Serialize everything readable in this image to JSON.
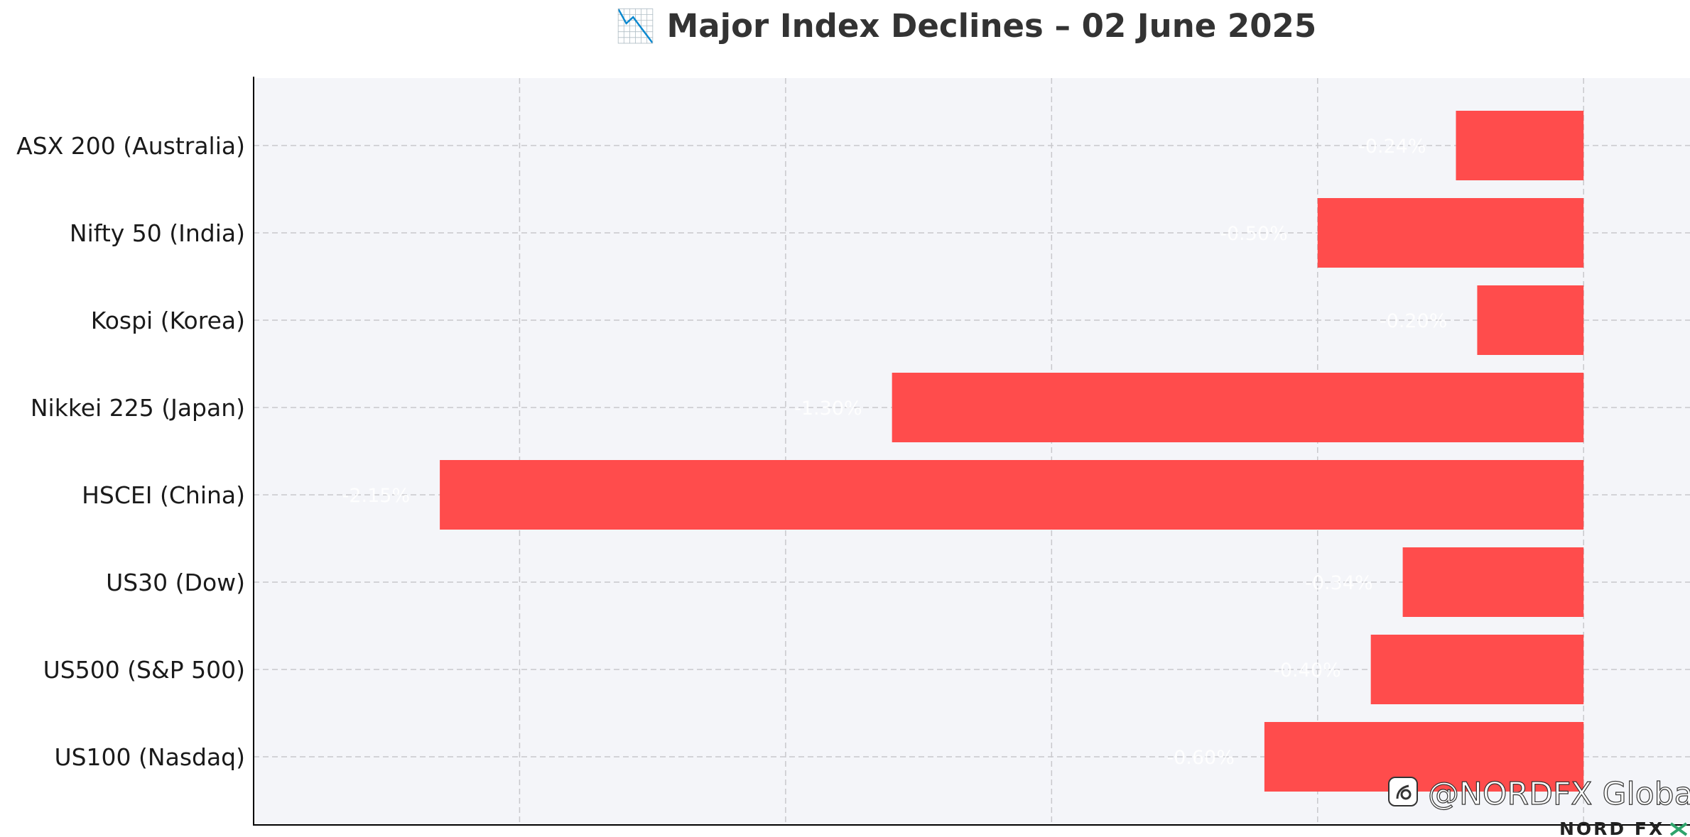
{
  "chart_data": {
    "type": "bar",
    "orientation": "horizontal",
    "title": "📉 Major Index Declines – 02 June 2025",
    "categories": [
      "ASX 200 (Australia)",
      "Nifty 50 (India)",
      "Kospi (Korea)",
      "Nikkei 225 (Japan)",
      "HSCEI (China)",
      "US30 (Dow)",
      "US500 (S&P 500)",
      "US100 (Nasdaq)"
    ],
    "values": [
      -0.24,
      -0.5,
      -0.2,
      -1.3,
      -2.15,
      -0.34,
      -0.4,
      -0.6
    ],
    "value_labels": [
      "-0.24%",
      "-0.50%",
      "-0.20%",
      "-1.30%",
      "-2.15%",
      "-0.34%",
      "-0.40%",
      "-0.60%"
    ],
    "xlim": [
      -2.5,
      0.2
    ],
    "x_gridlines": [
      -2.0,
      -1.5,
      -1.0,
      -0.5,
      0.0
    ],
    "grid": true,
    "xlabel": "",
    "ylabel": "",
    "bar_color": "#ff4c4c",
    "plot_background": "#f4f5f9",
    "grid_color": "#c8c8cc"
  },
  "watermark": {
    "text": "@NORDFX Global"
  },
  "logo": {
    "text": "NORD FX"
  }
}
